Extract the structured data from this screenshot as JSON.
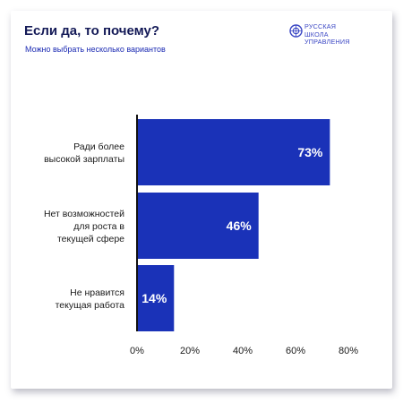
{
  "header": {
    "title": "Если да, то почему?",
    "subtitle": "Можно выбрать несколько вариантов"
  },
  "logo": {
    "lines": [
      "РУССКАЯ",
      "ШКОЛА",
      "УПРАВЛЕНИЯ"
    ]
  },
  "colors": {
    "bar": "#1a32b8",
    "title": "#141a57",
    "subtitle": "#1c2bb3",
    "axis": "#111111",
    "label": "#1a1a1a"
  },
  "chart_data": {
    "type": "bar",
    "orientation": "horizontal",
    "categories": [
      [
        "Ради более",
        "высокой зарплаты"
      ],
      [
        "Нет возможностей",
        "для роста в",
        "текущей сфере"
      ],
      [
        "Не нравится",
        "текущая работа"
      ]
    ],
    "values": [
      73,
      46,
      14
    ],
    "value_labels": [
      "73%",
      "46%",
      "14%"
    ],
    "xlim": [
      0,
      80
    ],
    "x_ticks": [
      0,
      20,
      40,
      60,
      80
    ],
    "x_tick_labels": [
      "0%",
      "20%",
      "40%",
      "60%",
      "80%"
    ],
    "grid": false
  }
}
